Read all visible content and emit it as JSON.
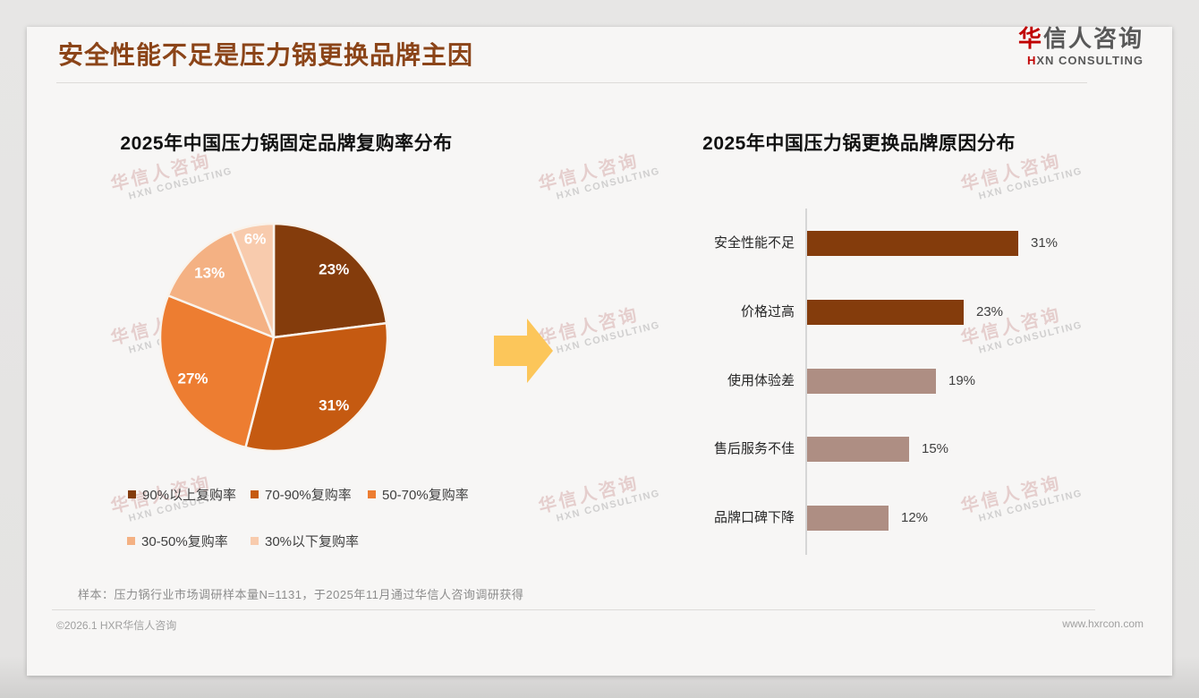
{
  "page": {
    "title": "安全性能不足是压力锅更换品牌主因",
    "footnote": "样本：压力锅行业市场调研样本量N=1131，于2025年11月通过华信人咨询调研获得",
    "footer_left": "©2026.1 HXR华信人咨询",
    "footer_right": "www.hxrcon.com"
  },
  "logo": {
    "zh_first": "华",
    "zh_rest": "信人咨询",
    "en_first": "H",
    "en_rest": "XN CONSULTING"
  },
  "watermark": {
    "zh": "华信人咨询",
    "en": "HXN CONSULTING"
  },
  "colors": {
    "title_brown": "#8b4418",
    "logo_red": "#c00000",
    "arrow_gold": "#fcc65a",
    "axis_gray": "#d6d6d6",
    "dark_brown": "#843C0C",
    "mauve": "#AE8E83"
  },
  "chart_data": [
    {
      "type": "pie",
      "title": "2025年中国压力锅固定品牌复购率分布",
      "labels": [
        "90%以上复购率",
        "70-90%复购率",
        "50-70%复购率",
        "30-50%复购率",
        "30%以下复购率"
      ],
      "values": [
        23,
        31,
        27,
        13,
        6
      ],
      "data_labels": [
        "23%",
        "31%",
        "27%",
        "13%",
        "6%"
      ],
      "colors": [
        "#843C0C",
        "#C55A11",
        "#ED7D31",
        "#F4B183",
        "#F8CBAD"
      ],
      "start_angle_deg": 0,
      "direction": "clockwise",
      "legend_position": "bottom"
    },
    {
      "type": "bar",
      "title": "2025年中国压力锅更换品牌原因分布",
      "orientation": "horizontal",
      "categories": [
        "安全性能不足",
        "价格过高",
        "使用体验差",
        "售后服务不佳",
        "品牌口碑下降"
      ],
      "values": [
        31,
        23,
        19,
        15,
        12
      ],
      "value_labels": [
        "31%",
        "23%",
        "19%",
        "15%",
        "12%"
      ],
      "bar_colors": [
        "#843C0C",
        "#843C0C",
        "#AE8E83",
        "#AE8E83",
        "#AE8E83"
      ],
      "xlim": [
        0,
        33
      ],
      "grid": false,
      "legend_position": "none"
    }
  ]
}
